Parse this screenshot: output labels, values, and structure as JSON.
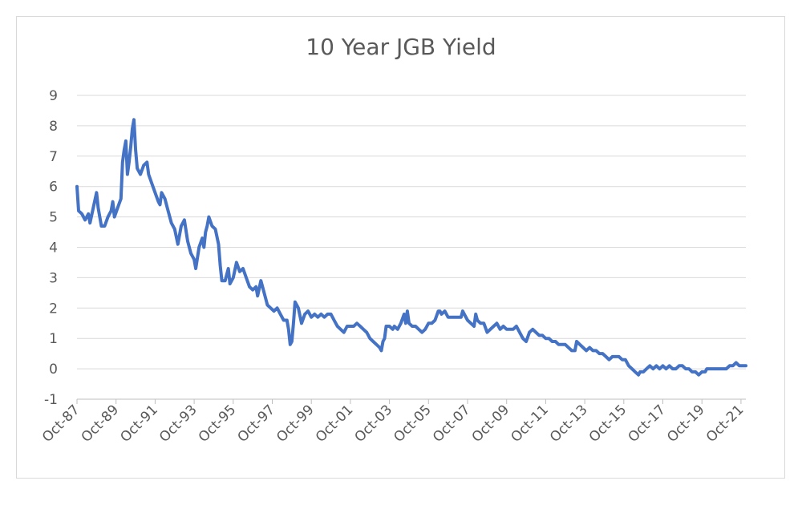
{
  "chart_data": {
    "type": "line",
    "title": "10 Year JGB Yield",
    "xlabel": "",
    "ylabel": "",
    "ylim": [
      -1,
      9
    ],
    "y_ticks": [
      -1,
      0,
      1,
      2,
      3,
      4,
      5,
      6,
      7,
      8,
      9
    ],
    "x_range": [
      "1987-10",
      "2022-01"
    ],
    "x_tick_labels": [
      "Oct-87",
      "Oct-89",
      "Oct-91",
      "Oct-93",
      "Oct-95",
      "Oct-97",
      "Oct-99",
      "Oct-01",
      "Oct-03",
      "Oct-05",
      "Oct-07",
      "Oct-09",
      "Oct-11",
      "Oct-13",
      "Oct-15",
      "Oct-17",
      "Oct-19",
      "Oct-21"
    ],
    "grid": "horizontal",
    "line_color": "#4472c4",
    "series": [
      {
        "values": [
          [
            "1987-10",
            6.0
          ],
          [
            "1987-11",
            5.2
          ],
          [
            "1988-01",
            5.1
          ],
          [
            "1988-03",
            4.9
          ],
          [
            "1988-05",
            5.1
          ],
          [
            "1988-06",
            4.8
          ],
          [
            "1988-08",
            5.3
          ],
          [
            "1988-10",
            5.8
          ],
          [
            "1988-11",
            5.3
          ],
          [
            "1989-01",
            4.7
          ],
          [
            "1989-03",
            4.7
          ],
          [
            "1989-05",
            5.0
          ],
          [
            "1989-07",
            5.2
          ],
          [
            "1989-08",
            5.5
          ],
          [
            "1989-09",
            5.0
          ],
          [
            "1989-11",
            5.3
          ],
          [
            "1990-01",
            5.6
          ],
          [
            "1990-02",
            6.8
          ],
          [
            "1990-03",
            7.2
          ],
          [
            "1990-04",
            7.5
          ],
          [
            "1990-05",
            6.4
          ],
          [
            "1990-06",
            6.8
          ],
          [
            "1990-07",
            7.3
          ],
          [
            "1990-08",
            7.9
          ],
          [
            "1990-09",
            8.2
          ],
          [
            "1990-10",
            7.2
          ],
          [
            "1990-11",
            6.6
          ],
          [
            "1991-01",
            6.4
          ],
          [
            "1991-03",
            6.7
          ],
          [
            "1991-05",
            6.8
          ],
          [
            "1991-06",
            6.4
          ],
          [
            "1991-08",
            6.1
          ],
          [
            "1991-10",
            5.8
          ],
          [
            "1991-12",
            5.5
          ],
          [
            "1992-01",
            5.4
          ],
          [
            "1992-02",
            5.8
          ],
          [
            "1992-04",
            5.6
          ],
          [
            "1992-06",
            5.2
          ],
          [
            "1992-08",
            4.8
          ],
          [
            "1992-10",
            4.6
          ],
          [
            "1992-12",
            4.1
          ],
          [
            "1993-02",
            4.7
          ],
          [
            "1993-04",
            4.9
          ],
          [
            "1993-06",
            4.2
          ],
          [
            "1993-08",
            3.8
          ],
          [
            "1993-10",
            3.6
          ],
          [
            "1993-11",
            3.3
          ],
          [
            "1994-01",
            4.0
          ],
          [
            "1994-03",
            4.3
          ],
          [
            "1994-04",
            4.0
          ],
          [
            "1994-05",
            4.5
          ],
          [
            "1994-06",
            4.7
          ],
          [
            "1994-07",
            5.0
          ],
          [
            "1994-09",
            4.7
          ],
          [
            "1994-11",
            4.6
          ],
          [
            "1995-01",
            4.1
          ],
          [
            "1995-02",
            3.4
          ],
          [
            "1995-03",
            2.9
          ],
          [
            "1995-05",
            2.9
          ],
          [
            "1995-07",
            3.3
          ],
          [
            "1995-08",
            2.8
          ],
          [
            "1995-10",
            3.0
          ],
          [
            "1995-12",
            3.5
          ],
          [
            "1996-02",
            3.2
          ],
          [
            "1996-04",
            3.3
          ],
          [
            "1996-06",
            3.0
          ],
          [
            "1996-08",
            2.7
          ],
          [
            "1996-10",
            2.6
          ],
          [
            "1996-12",
            2.7
          ],
          [
            "1997-01",
            2.4
          ],
          [
            "1997-03",
            2.9
          ],
          [
            "1997-05",
            2.5
          ],
          [
            "1997-07",
            2.1
          ],
          [
            "1997-09",
            2.0
          ],
          [
            "1997-11",
            1.9
          ],
          [
            "1998-01",
            2.0
          ],
          [
            "1998-03",
            1.8
          ],
          [
            "1998-05",
            1.6
          ],
          [
            "1998-07",
            1.6
          ],
          [
            "1998-08",
            1.3
          ],
          [
            "1998-09",
            0.8
          ],
          [
            "1998-10",
            0.9
          ],
          [
            "1998-11",
            1.5
          ],
          [
            "1998-12",
            2.2
          ],
          [
            "1999-02",
            2.0
          ],
          [
            "1999-04",
            1.5
          ],
          [
            "1999-06",
            1.8
          ],
          [
            "1999-08",
            1.9
          ],
          [
            "1999-10",
            1.7
          ],
          [
            "1999-12",
            1.8
          ],
          [
            "2000-02",
            1.7
          ],
          [
            "2000-04",
            1.8
          ],
          [
            "2000-06",
            1.7
          ],
          [
            "2000-08",
            1.8
          ],
          [
            "2000-10",
            1.8
          ],
          [
            "2000-12",
            1.6
          ],
          [
            "2001-02",
            1.4
          ],
          [
            "2001-04",
            1.3
          ],
          [
            "2001-06",
            1.2
          ],
          [
            "2001-08",
            1.4
          ],
          [
            "2001-10",
            1.4
          ],
          [
            "2001-12",
            1.4
          ],
          [
            "2002-02",
            1.5
          ],
          [
            "2002-04",
            1.4
          ],
          [
            "2002-06",
            1.3
          ],
          [
            "2002-08",
            1.2
          ],
          [
            "2002-10",
            1.0
          ],
          [
            "2002-12",
            0.9
          ],
          [
            "2003-02",
            0.8
          ],
          [
            "2003-04",
            0.7
          ],
          [
            "2003-05",
            0.6
          ],
          [
            "2003-06",
            0.9
          ],
          [
            "2003-07",
            1.0
          ],
          [
            "2003-08",
            1.4
          ],
          [
            "2003-10",
            1.4
          ],
          [
            "2003-12",
            1.3
          ],
          [
            "2004-01",
            1.4
          ],
          [
            "2004-03",
            1.3
          ],
          [
            "2004-05",
            1.5
          ],
          [
            "2004-07",
            1.8
          ],
          [
            "2004-08",
            1.5
          ],
          [
            "2004-09",
            1.9
          ],
          [
            "2004-10",
            1.5
          ],
          [
            "2004-12",
            1.4
          ],
          [
            "2005-02",
            1.4
          ],
          [
            "2005-04",
            1.3
          ],
          [
            "2005-06",
            1.2
          ],
          [
            "2005-08",
            1.3
          ],
          [
            "2005-10",
            1.5
          ],
          [
            "2005-12",
            1.5
          ],
          [
            "2006-02",
            1.6
          ],
          [
            "2006-04",
            1.9
          ],
          [
            "2006-05",
            1.9
          ],
          [
            "2006-06",
            1.8
          ],
          [
            "2006-08",
            1.9
          ],
          [
            "2006-10",
            1.7
          ],
          [
            "2006-12",
            1.7
          ],
          [
            "2007-02",
            1.7
          ],
          [
            "2007-04",
            1.7
          ],
          [
            "2007-06",
            1.7
          ],
          [
            "2007-07",
            1.9
          ],
          [
            "2007-08",
            1.8
          ],
          [
            "2007-10",
            1.6
          ],
          [
            "2007-12",
            1.5
          ],
          [
            "2008-02",
            1.4
          ],
          [
            "2008-03",
            1.8
          ],
          [
            "2008-04",
            1.6
          ],
          [
            "2008-06",
            1.5
          ],
          [
            "2008-08",
            1.5
          ],
          [
            "2008-10",
            1.2
          ],
          [
            "2008-12",
            1.3
          ],
          [
            "2009-02",
            1.4
          ],
          [
            "2009-04",
            1.5
          ],
          [
            "2009-06",
            1.3
          ],
          [
            "2009-08",
            1.4
          ],
          [
            "2009-10",
            1.3
          ],
          [
            "2009-12",
            1.3
          ],
          [
            "2010-02",
            1.3
          ],
          [
            "2010-04",
            1.4
          ],
          [
            "2010-06",
            1.2
          ],
          [
            "2010-08",
            1.0
          ],
          [
            "2010-10",
            0.9
          ],
          [
            "2010-12",
            1.2
          ],
          [
            "2011-02",
            1.3
          ],
          [
            "2011-04",
            1.2
          ],
          [
            "2011-06",
            1.1
          ],
          [
            "2011-08",
            1.1
          ],
          [
            "2011-10",
            1.0
          ],
          [
            "2011-12",
            1.0
          ],
          [
            "2012-02",
            0.9
          ],
          [
            "2012-04",
            0.9
          ],
          [
            "2012-06",
            0.8
          ],
          [
            "2012-08",
            0.8
          ],
          [
            "2012-10",
            0.8
          ],
          [
            "2012-12",
            0.7
          ],
          [
            "2013-02",
            0.6
          ],
          [
            "2013-04",
            0.6
          ],
          [
            "2013-05",
            0.9
          ],
          [
            "2013-07",
            0.8
          ],
          [
            "2013-09",
            0.7
          ],
          [
            "2013-11",
            0.6
          ],
          [
            "2014-01",
            0.7
          ],
          [
            "2014-03",
            0.6
          ],
          [
            "2014-05",
            0.6
          ],
          [
            "2014-07",
            0.5
          ],
          [
            "2014-09",
            0.5
          ],
          [
            "2014-11",
            0.4
          ],
          [
            "2015-01",
            0.3
          ],
          [
            "2015-03",
            0.4
          ],
          [
            "2015-05",
            0.4
          ],
          [
            "2015-07",
            0.4
          ],
          [
            "2015-09",
            0.3
          ],
          [
            "2015-11",
            0.3
          ],
          [
            "2016-01",
            0.1
          ],
          [
            "2016-03",
            0.0
          ],
          [
            "2016-05",
            -0.1
          ],
          [
            "2016-07",
            -0.2
          ],
          [
            "2016-08",
            -0.1
          ],
          [
            "2016-10",
            -0.1
          ],
          [
            "2016-12",
            0.0
          ],
          [
            "2017-02",
            0.1
          ],
          [
            "2017-04",
            0.0
          ],
          [
            "2017-06",
            0.1
          ],
          [
            "2017-08",
            0.0
          ],
          [
            "2017-10",
            0.1
          ],
          [
            "2017-12",
            0.0
          ],
          [
            "2018-02",
            0.1
          ],
          [
            "2018-04",
            0.0
          ],
          [
            "2018-06",
            0.0
          ],
          [
            "2018-08",
            0.1
          ],
          [
            "2018-10",
            0.1
          ],
          [
            "2018-12",
            0.0
          ],
          [
            "2019-02",
            0.0
          ],
          [
            "2019-04",
            -0.1
          ],
          [
            "2019-06",
            -0.1
          ],
          [
            "2019-08",
            -0.2
          ],
          [
            "2019-10",
            -0.1
          ],
          [
            "2019-12",
            -0.1
          ],
          [
            "2020-01",
            0.0
          ],
          [
            "2020-03",
            0.0
          ],
          [
            "2020-05",
            0.0
          ],
          [
            "2020-07",
            0.0
          ],
          [
            "2020-09",
            0.0
          ],
          [
            "2020-11",
            0.0
          ],
          [
            "2021-01",
            0.0
          ],
          [
            "2021-03",
            0.1
          ],
          [
            "2021-05",
            0.1
          ],
          [
            "2021-07",
            0.2
          ],
          [
            "2021-09",
            0.1
          ],
          [
            "2021-11",
            0.1
          ],
          [
            "2022-01",
            0.1
          ]
        ]
      }
    ]
  }
}
